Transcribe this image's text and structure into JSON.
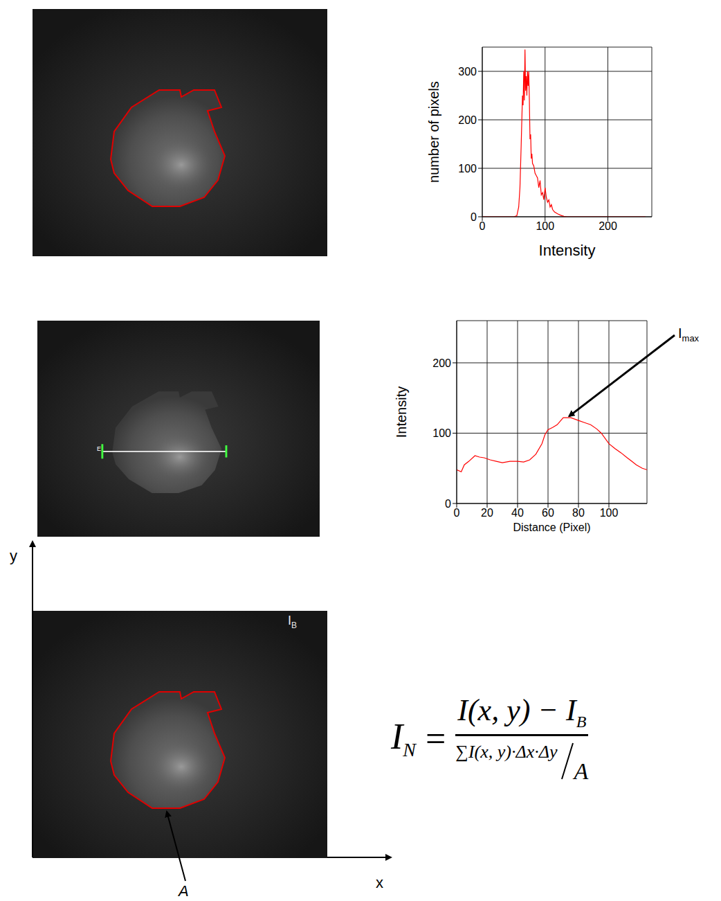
{
  "chart_data": [
    {
      "type": "line",
      "x_label": "Intensity",
      "y_label": "number of pixels",
      "x": [
        0,
        50,
        55,
        58,
        60,
        62,
        64,
        65,
        66,
        67,
        68,
        69,
        70,
        71,
        72,
        73,
        74,
        75,
        76,
        77,
        78,
        79,
        80,
        82,
        84,
        86,
        88,
        90,
        92,
        94,
        96,
        98,
        100,
        102,
        104,
        106,
        108,
        110,
        112,
        115,
        120,
        125,
        130,
        135,
        260
      ],
      "values": [
        0,
        0,
        2,
        20,
        60,
        150,
        250,
        230,
        300,
        240,
        345,
        260,
        290,
        250,
        300,
        270,
        300,
        240,
        160,
        170,
        120,
        130,
        110,
        105,
        90,
        85,
        80,
        60,
        75,
        45,
        50,
        35,
        60,
        40,
        30,
        35,
        20,
        25,
        15,
        10,
        6,
        3,
        1,
        0,
        0
      ],
      "color": "#ff0000",
      "xlim": [
        0,
        270
      ],
      "xticks": [
        0,
        100,
        200
      ],
      "ylim": [
        0,
        350
      ],
      "yticks": [
        0,
        100,
        200,
        300
      ],
      "grid": true
    },
    {
      "type": "line",
      "x_label": "Distance (Pixel)",
      "y_label": "Intensity",
      "x": [
        0,
        3,
        5,
        8,
        12,
        15,
        18,
        22,
        26,
        30,
        35,
        40,
        44,
        48,
        52,
        56,
        58,
        60,
        63,
        66,
        70,
        75,
        80,
        84,
        88,
        92,
        95,
        100,
        104,
        108,
        112,
        115,
        118,
        122,
        125
      ],
      "values": [
        48,
        45,
        55,
        60,
        68,
        66,
        65,
        62,
        60,
        58,
        60,
        60,
        59,
        62,
        70,
        85,
        98,
        105,
        108,
        112,
        122,
        122,
        118,
        115,
        112,
        106,
        100,
        85,
        78,
        72,
        65,
        60,
        55,
        50,
        48
      ],
      "color": "#ff0000",
      "xlim": [
        0,
        125
      ],
      "xticks": [
        0,
        20,
        40,
        60,
        80,
        100
      ],
      "ylim": [
        0,
        260
      ],
      "yticks": [
        0,
        100,
        200
      ],
      "grid": true,
      "annotations": [
        {
          "text": "I",
          "subscript": "max",
          "x": 72,
          "y": 122
        }
      ]
    }
  ],
  "figure": {
    "line_marker": "E",
    "axis_x": "x",
    "axis_y": "y",
    "background_label": {
      "text": "I",
      "subscript": "B"
    },
    "area_label": "A",
    "formula": {
      "lhs": "I",
      "lhs_sub": "N",
      "equals": "=",
      "numerator": "I(x, y) − I",
      "numerator_sub": "B",
      "denominator": "∑I(x, y)·Δx·Δy",
      "denominator_over": "A"
    }
  }
}
